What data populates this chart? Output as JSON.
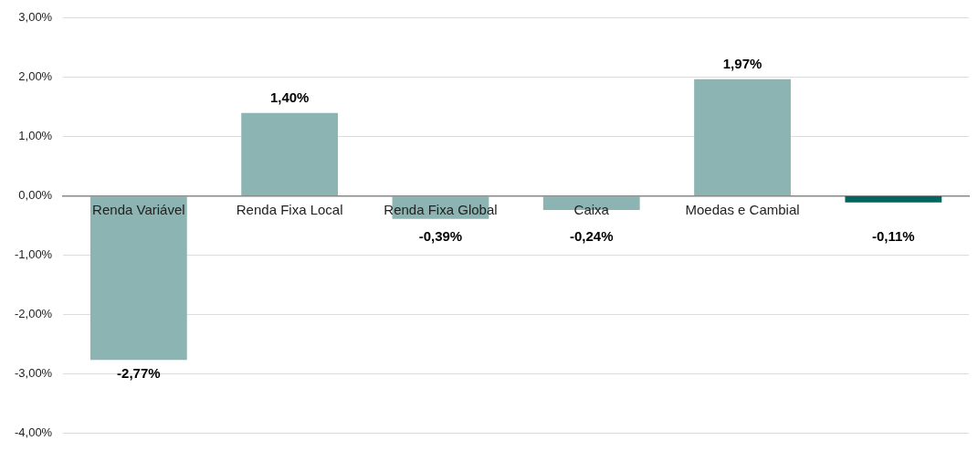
{
  "chart_data": {
    "type": "bar",
    "categories": [
      "Renda Variável",
      "Renda Fixa Local",
      "Renda Fixa Global",
      "Caixa",
      "Moedas e Cambial",
      null
    ],
    "values": [
      -2.77,
      1.4,
      -0.39,
      -0.24,
      1.97,
      -0.11
    ],
    "colors": [
      "#8cb4b2",
      "#8cb4b2",
      "#8cb4b2",
      "#8cb4b2",
      "#8cb4b2",
      "#00665e"
    ],
    "value_labels": [
      "-2,77%",
      "1,40%",
      "-0,39%",
      "-0,24%",
      "1,97%",
      "-0,11%"
    ],
    "ylim": [
      -4,
      3
    ],
    "yticks": [
      {
        "value": -4,
        "label": "-4,00%"
      },
      {
        "value": -3,
        "label": "-3,00%"
      },
      {
        "value": -2,
        "label": "-2,00%"
      },
      {
        "value": -1,
        "label": "-1,00%"
      },
      {
        "value": 0,
        "label": "0,00%"
      },
      {
        "value": 1,
        "label": "1,00%"
      },
      {
        "value": 2,
        "label": "2,00%"
      },
      {
        "value": 3,
        "label": "3,00%"
      }
    ],
    "grid": "y",
    "legend": false
  }
}
